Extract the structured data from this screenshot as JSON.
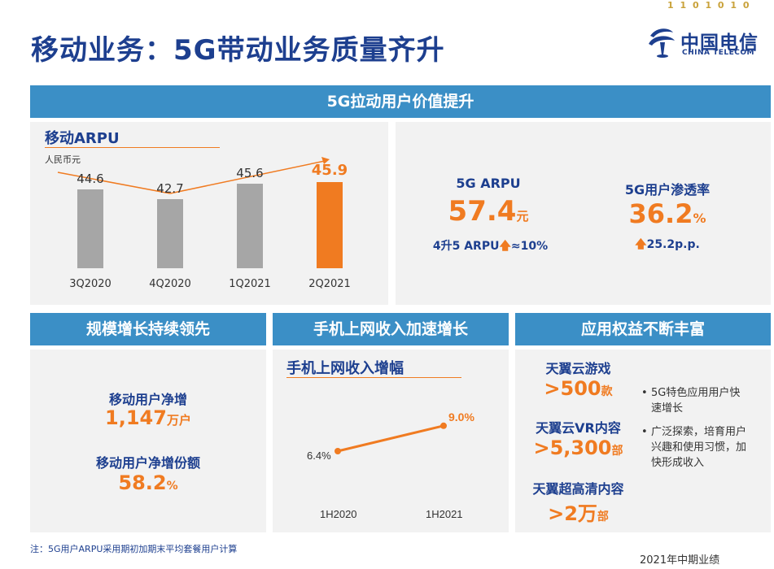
{
  "header": {
    "title": "移动业务：5G带动业务质量齐升",
    "logo_cn": "中国电信",
    "logo_en": "CHINA TELECOM",
    "binary": "1 1 0 1 0 1 0",
    "colors": {
      "primary": "#1d3f8f",
      "band": "#3b8fc6",
      "accent": "#f07b21",
      "bar": "#a6a6a6"
    }
  },
  "top_section": {
    "band_title": "5G拉动用户价值提升",
    "arpu_chart_title": "移动ARPU",
    "arpu_unit": "人民币元",
    "chart_data": {
      "type": "bar",
      "categories": [
        "3Q2020",
        "4Q2020",
        "1Q2021",
        "2Q2021"
      ],
      "values": [
        44.6,
        42.7,
        45.6,
        45.9
      ],
      "value_labels": [
        "44.6",
        "42.7",
        "45.6",
        "45.9"
      ],
      "highlight_index": 3,
      "title": "移动ARPU",
      "ylabel": "人民币元",
      "ylim": [
        0,
        48
      ]
    },
    "g5_arpu": {
      "label": "5G ARPU",
      "value": "57.4",
      "unit": "元",
      "note": "4升5 ARPU",
      "note_change": "≈10%"
    },
    "g5_penetration": {
      "label": "5G用户渗透率",
      "value": "36.2",
      "unit": "%",
      "change": "25.2p.p."
    }
  },
  "scale": {
    "band_title": "规模增长持续领先",
    "net_add_label": "移动用户净增",
    "net_add_value": "1,147",
    "net_add_unit": "万户",
    "share_label": "移动用户净增份额",
    "share_value": "58.2",
    "share_unit": "%"
  },
  "mobile_internet": {
    "band_title": "手机上网收入加速增长",
    "chart_title": "手机上网收入增幅",
    "chart_data": {
      "type": "line",
      "categories": [
        "1H2020",
        "1H2021"
      ],
      "values": [
        6.4,
        9.0
      ],
      "value_labels": [
        "6.4%",
        "9.0%"
      ],
      "ylim": [
        0,
        12
      ]
    }
  },
  "apps": {
    "band_title": "应用权益不断丰富",
    "items": [
      {
        "name": "天翼云游戏",
        "value": ">500",
        "unit": "款"
      },
      {
        "name": "天翼云VR内容",
        "value": ">5,300",
        "unit": "部"
      },
      {
        "name": "天翼超高清内容",
        "value": ">2万",
        "unit": "部"
      }
    ],
    "bullets": [
      "5G特色应用用户快速增长",
      "广泛探索，培育用户兴趣和使用习惯，加快形成收入"
    ]
  },
  "footer": {
    "note": "注：5G用户ARPU采用期初加期末平均套餐用户计算",
    "report": "2021年中期业绩"
  }
}
